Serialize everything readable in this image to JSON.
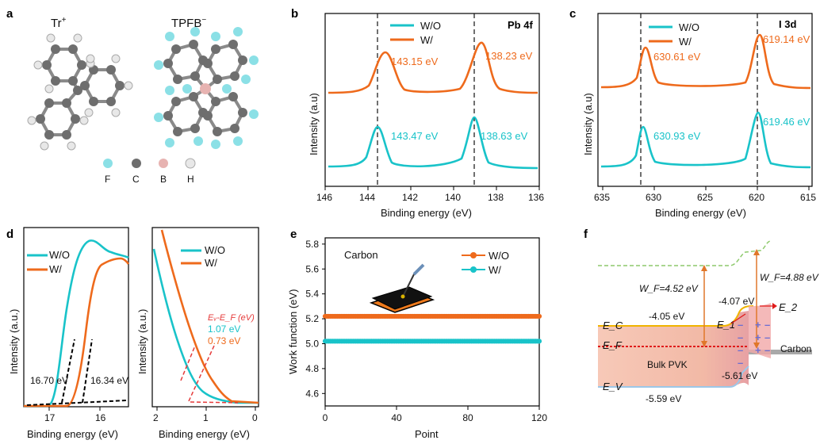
{
  "panel_labels": {
    "a": "a",
    "b": "b",
    "c": "c",
    "d": "d",
    "e": "e",
    "f": "f"
  },
  "colors": {
    "wo": "#19c3c9",
    "w": "#ee6a1c"
  },
  "panel_a": {
    "tr_label": "Tr",
    "tr_sup": "+",
    "tpfb_label": "TPFB",
    "tpfb_sup": "−",
    "legend": [
      "F",
      "C",
      "B",
      "H"
    ]
  },
  "panel_b": {
    "element": "Pb 4f",
    "xlabel": "Binding energy  (eV)",
    "ylabel": "Intensity (a.u)",
    "xticks": [
      "146",
      "144",
      "142",
      "140",
      "138",
      "136"
    ],
    "legend": [
      "W/O",
      "W/"
    ],
    "peaks_w": [
      "143.15 eV",
      "138.23 eV"
    ],
    "peaks_wo": [
      "143.47 eV",
      "138.63 eV"
    ]
  },
  "panel_c": {
    "element": "I 3d",
    "xlabel": "Binding energy  (eV)",
    "ylabel": "Intensity (a.u)",
    "xticks": [
      "635",
      "630",
      "625",
      "620",
      "615"
    ],
    "legend": [
      "W/O",
      "W/"
    ],
    "peaks_w": [
      "630.61 eV",
      "619.14 eV"
    ],
    "peaks_wo": [
      "630.93 eV",
      "619.46 eV"
    ]
  },
  "panel_d": {
    "ylabel": "Intensity (a.u.)",
    "xlabel": "Binding energy (eV)",
    "left_xticks": [
      "17",
      "16"
    ],
    "right_xticks": [
      "2",
      "1",
      "0"
    ],
    "legend": [
      "W/O",
      "W/"
    ],
    "cutoff_wo": "16.70 eV",
    "cutoff_w": "16.34 eV",
    "evf_title": "Eᵥ-E_F (eV)",
    "evf_wo": "1.07 eV",
    "evf_w": "0.73 eV"
  },
  "chart_data": {
    "type": "scatter",
    "title": "Carbon",
    "xlabel": "Point",
    "ylabel": "Work function (eV)",
    "xlim": [
      0,
      120
    ],
    "ylim": [
      4.5,
      5.85
    ],
    "xticks": [
      "0",
      "40",
      "80",
      "120"
    ],
    "yticks": [
      "4.6",
      "4.8",
      "5.0",
      "5.2",
      "5.4",
      "5.6",
      "5.8"
    ],
    "series": [
      {
        "name": "W/O",
        "value": 5.22,
        "color": "#ee6a1c"
      },
      {
        "name": "W/",
        "value": 5.02,
        "color": "#19c3c9"
      }
    ]
  },
  "panel_f": {
    "wf_left": "W_F=4.52 eV",
    "wf_right": "W_F=4.88 eV",
    "ec_left": "-4.05 eV",
    "ec_right": "-4.07 eV",
    "ev_left": "-5.59 eV",
    "ev_right": "-5.61 eV",
    "label_ec": "E_C",
    "label_ef": "E_F",
    "label_ev": "E_V",
    "label_e1": "E_1",
    "label_e2": "E_2",
    "bulk": "Bulk PVK",
    "carbon": "Carbon"
  }
}
